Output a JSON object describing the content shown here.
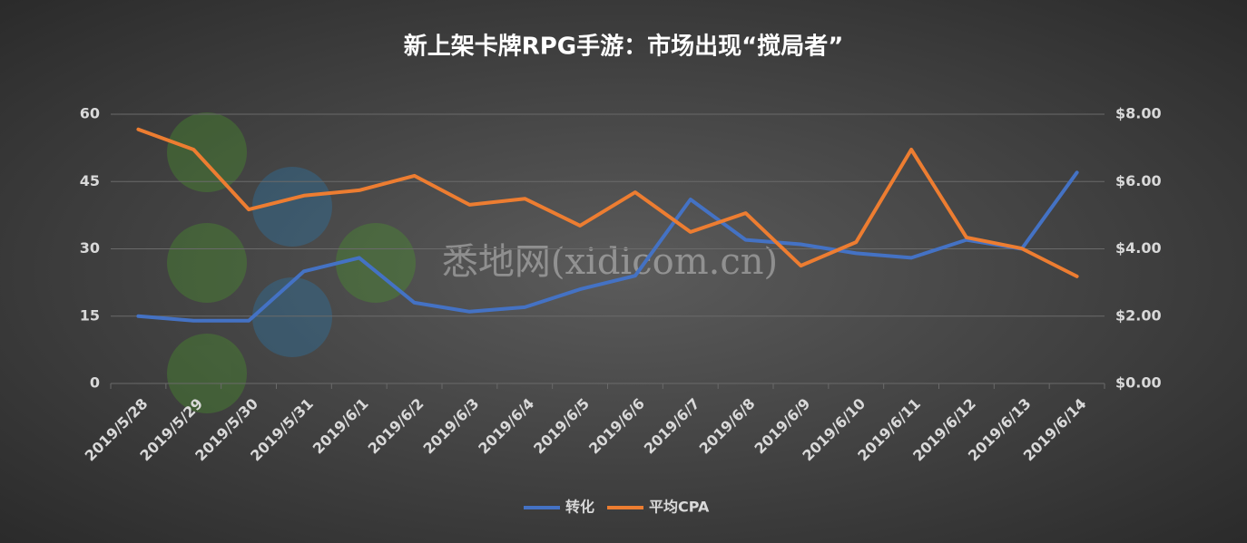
{
  "chart_data": {
    "type": "line",
    "title": "新上架卡牌RPG手游：市场出现“搅局者”",
    "watermark": "悉地网(xidicom.cn)",
    "categories": [
      "2019/5/28",
      "2019/5/29",
      "2019/5/30",
      "2019/5/31",
      "2019/6/1",
      "2019/6/2",
      "2019/6/3",
      "2019/6/4",
      "2019/6/5",
      "2019/6/6",
      "2019/6/7",
      "2019/6/8",
      "2019/6/9",
      "2019/6/10",
      "2019/6/11",
      "2019/6/12",
      "2019/6/13",
      "2019/6/14"
    ],
    "series": [
      {
        "name": "转化",
        "color": "#4472c4",
        "values": [
          15,
          14,
          14,
          25,
          28,
          18,
          16,
          17,
          21,
          24,
          41,
          32,
          31,
          29,
          28,
          32,
          30,
          47
        ]
      },
      {
        "name": "平均CPA",
        "color": "#ed7d31",
        "axis": "y2",
        "values": [
          7.55,
          6.95,
          5.17,
          5.58,
          5.74,
          6.17,
          5.31,
          5.49,
          4.69,
          5.68,
          4.5,
          5.06,
          3.5,
          4.2,
          6.95,
          4.34,
          4.01,
          3.18
        ]
      }
    ],
    "ylim": [
      0,
      60
    ],
    "yticks": [
      0,
      15,
      30,
      45,
      60
    ],
    "y2lim": [
      0,
      8
    ],
    "y2ticks": [
      {
        "value": 0,
        "label": "$0.00"
      },
      {
        "value": 2,
        "label": "$2.00"
      },
      {
        "value": 4,
        "label": "$4.00"
      },
      {
        "value": 6,
        "label": "$6.00"
      },
      {
        "value": 8,
        "label": "$8.00"
      }
    ],
    "grid": true,
    "legend": "bottom"
  }
}
